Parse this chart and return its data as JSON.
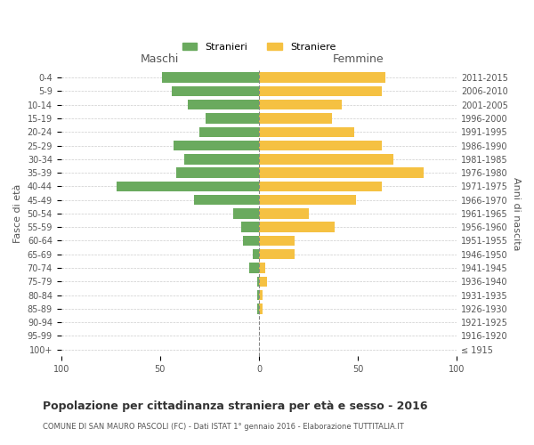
{
  "age_groups": [
    "100+",
    "95-99",
    "90-94",
    "85-89",
    "80-84",
    "75-79",
    "70-74",
    "65-69",
    "60-64",
    "55-59",
    "50-54",
    "45-49",
    "40-44",
    "35-39",
    "30-34",
    "25-29",
    "20-24",
    "15-19",
    "10-14",
    "5-9",
    "0-4"
  ],
  "birth_years": [
    "≤ 1915",
    "1916-1920",
    "1921-1925",
    "1926-1930",
    "1931-1935",
    "1936-1940",
    "1941-1945",
    "1946-1950",
    "1951-1955",
    "1956-1960",
    "1961-1965",
    "1966-1970",
    "1971-1975",
    "1976-1980",
    "1981-1985",
    "1986-1990",
    "1991-1995",
    "1996-2000",
    "2001-2005",
    "2006-2010",
    "2011-2015"
  ],
  "maschi": [
    0,
    0,
    0,
    1,
    1,
    1,
    5,
    3,
    8,
    9,
    13,
    33,
    72,
    42,
    38,
    43,
    30,
    27,
    36,
    44,
    49
  ],
  "femmine": [
    0,
    0,
    0,
    2,
    2,
    4,
    3,
    18,
    18,
    38,
    25,
    49,
    62,
    83,
    68,
    62,
    48,
    37,
    42,
    62,
    64
  ],
  "color_maschi": "#6aaa5e",
  "color_femmine": "#f5c142",
  "title": "Popolazione per cittadinanza straniera per età e sesso - 2016",
  "subtitle": "COMUNE DI SAN MAURO PASCOLI (FC) - Dati ISTAT 1° gennaio 2016 - Elaborazione TUTTITALIA.IT",
  "xlabel_left": "Maschi",
  "xlabel_right": "Femmine",
  "ylabel_left": "Fasce di età",
  "ylabel_right": "Anni di nascita",
  "legend_maschi": "Stranieri",
  "legend_femmine": "Straniere",
  "xlim": 100,
  "background_color": "#ffffff",
  "grid_color": "#cccccc"
}
